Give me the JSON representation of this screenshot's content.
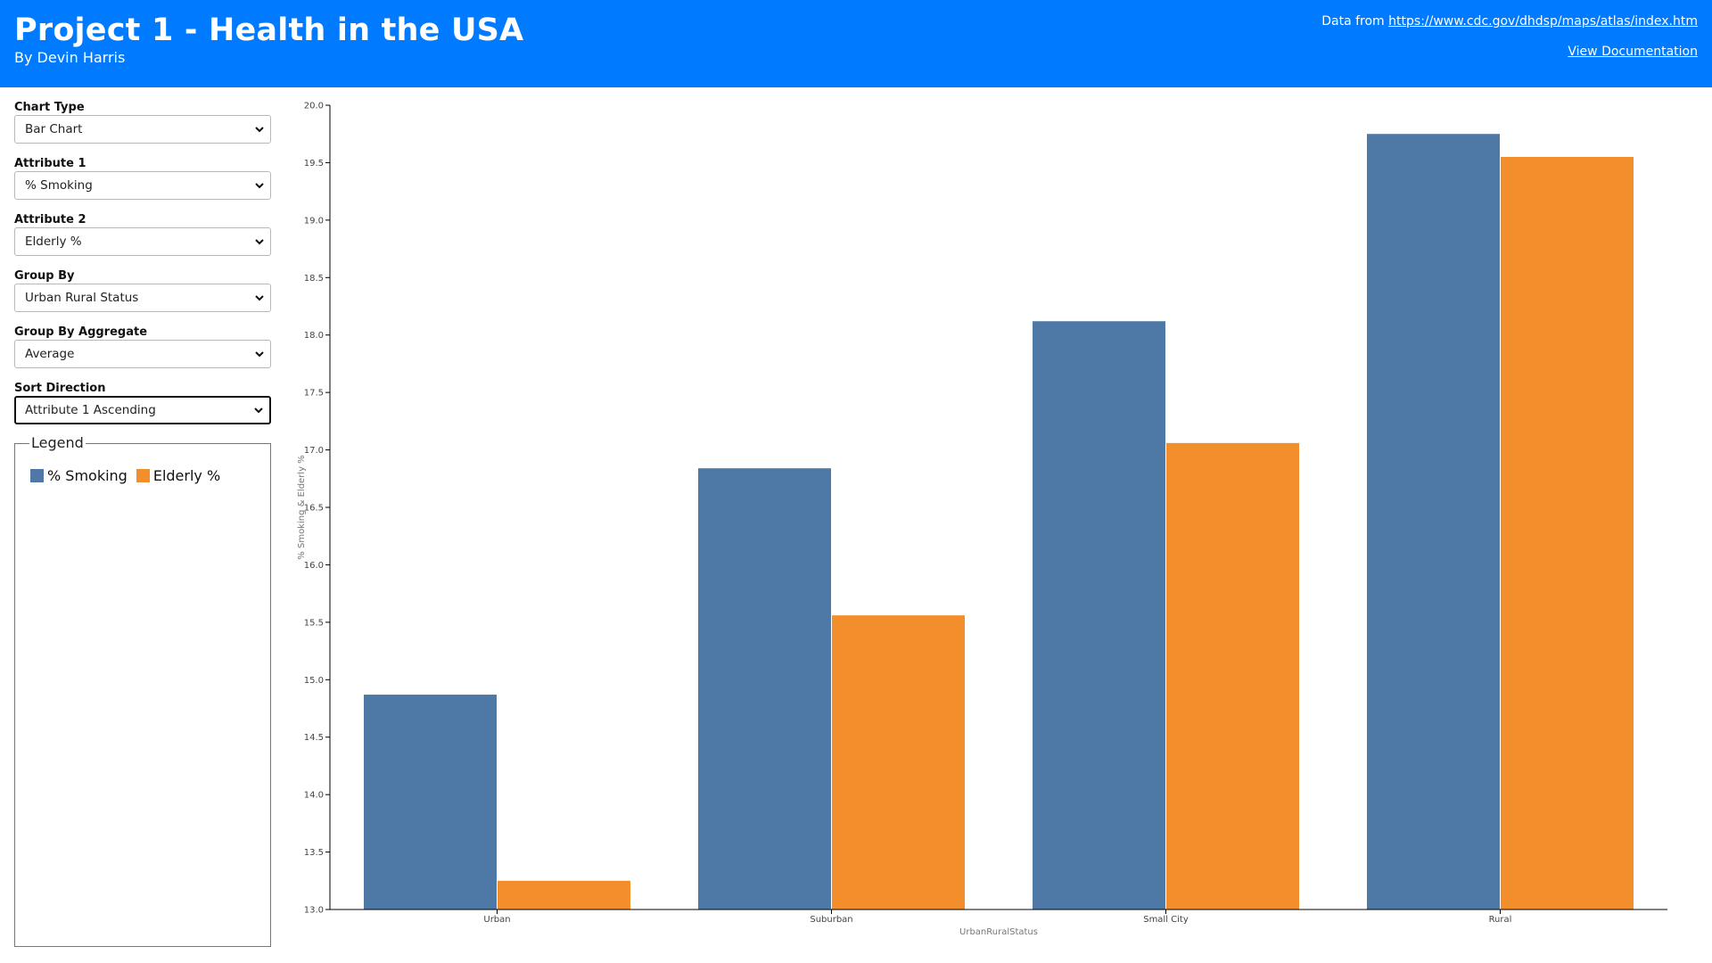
{
  "header": {
    "title": "Project 1 - Health in the USA",
    "byline": "By Devin Harris",
    "source_prefix": "Data from ",
    "source_url": "https://www.cdc.gov/dhdsp/maps/atlas/index.htm",
    "doc_link": "View Documentation",
    "bg_color": "#007bff"
  },
  "controls": {
    "chart_type": {
      "label": "Chart Type",
      "value": "Bar Chart"
    },
    "attribute1": {
      "label": "Attribute 1",
      "value": "% Smoking"
    },
    "attribute2": {
      "label": "Attribute 2",
      "value": "Elderly %"
    },
    "group_by": {
      "label": "Group By",
      "value": "Urban Rural Status"
    },
    "group_by_aggregate": {
      "label": "Group By Aggregate",
      "value": "Average"
    },
    "sort_direction": {
      "label": "Sort Direction",
      "value": "Attribute 1 Ascending"
    }
  },
  "legend": {
    "title": "Legend",
    "items": [
      {
        "label": "% Smoking",
        "color": "#4e79a7"
      },
      {
        "label": "Elderly %",
        "color": "#f28e2b"
      }
    ]
  },
  "chart_data": {
    "type": "bar",
    "categories": [
      "Urban",
      "Suburban",
      "Small City",
      "Rural"
    ],
    "series": [
      {
        "name": "% Smoking",
        "color": "#4e79a7",
        "values": [
          14.87,
          16.84,
          18.12,
          19.75
        ]
      },
      {
        "name": "Elderly %",
        "color": "#f28e2b",
        "values": [
          13.25,
          15.56,
          17.06,
          19.55
        ]
      }
    ],
    "xlabel": "UrbanRuralStatus",
    "ylabel": "% Smoking & Elderly %",
    "ylim": [
      13.0,
      20.0
    ],
    "yticks": [
      "13.0",
      "13.5",
      "14.0",
      "14.5",
      "15.0",
      "15.5",
      "16.0",
      "16.5",
      "17.0",
      "17.5",
      "18.0",
      "18.5",
      "19.0",
      "19.5",
      "20.0"
    ],
    "grid": false
  }
}
